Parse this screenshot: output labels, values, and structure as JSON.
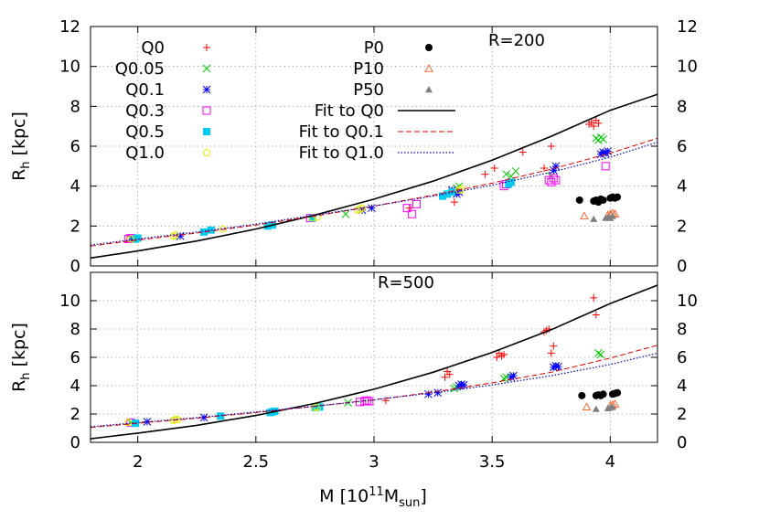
{
  "chart_data": {
    "type": "scatter",
    "xlabel": "M [10^11 M_sun]",
    "xlim": [
      1.8,
      4.2
    ],
    "x_ticks": [
      "2",
      "2.5",
      "3",
      "3.5",
      "4"
    ],
    "colors": {
      "Q0": "#ff0000",
      "Q0.05": "#00cc00",
      "Q0.1": "#0000ff",
      "Q0.3": "#ff00ff",
      "Q0.5": "#00ccee",
      "Q1.0": "#e8e800",
      "P0": "#000000",
      "P10": "#ff6633",
      "P50": "#808080",
      "Fit to Q0": "#000000",
      "Fit to Q0.1": "#dd0000",
      "Fit to Q1.0": "#0000cc"
    },
    "legend": {
      "left": [
        {
          "label": "Q0",
          "marker": "plus"
        },
        {
          "label": "Q0.05",
          "marker": "x"
        },
        {
          "label": "Q0.1",
          "marker": "star"
        },
        {
          "label": "Q0.3",
          "marker": "open-square"
        },
        {
          "label": "Q0.5",
          "marker": "filled-square"
        },
        {
          "label": "Q1.0",
          "marker": "open-pentagon"
        }
      ],
      "right": [
        {
          "label": "P0",
          "marker": "filled-circle"
        },
        {
          "label": "P10",
          "marker": "open-triangle"
        },
        {
          "label": "P50",
          "marker": "filled-triangle"
        },
        {
          "label": "Fit to Q0",
          "marker": "solid-line"
        },
        {
          "label": "Fit to Q0.1",
          "marker": "dashed-line"
        },
        {
          "label": "Fit to Q1.0",
          "marker": "dotted-line"
        }
      ]
    },
    "panels": [
      {
        "label": "R=200",
        "ylabel": "R_h [kpc]",
        "ylim": [
          0,
          12
        ],
        "y_ticks": [
          "0",
          "2",
          "4",
          "6",
          "8",
          "10",
          "12"
        ],
        "series": [
          {
            "name": "Q0",
            "x": [
              3.15,
              3.34,
              3.47,
              3.51,
              3.63,
              3.72,
              3.75,
              3.91,
              3.92,
              3.93,
              3.94,
              3.95
            ],
            "y": [
              2.9,
              3.2,
              4.6,
              4.9,
              5.7,
              4.9,
              6.0,
              7.1,
              7.2,
              7.0,
              7.3,
              7.15
            ]
          },
          {
            "name": "Q0.05",
            "x": [
              1.97,
              2.88,
              3.35,
              3.36,
              3.56,
              3.58,
              3.6,
              3.75,
              3.94,
              3.95,
              3.96,
              3.97
            ],
            "y": [
              1.35,
              2.6,
              3.9,
              4.0,
              4.6,
              4.5,
              4.75,
              4.5,
              6.4,
              6.3,
              6.45,
              6.35
            ]
          },
          {
            "name": "Q0.1",
            "x": [
              1.98,
              2.18,
              2.95,
              2.99,
              3.33,
              3.35,
              3.36,
              3.76,
              3.77,
              3.96,
              3.97,
              3.98,
              3.99
            ],
            "y": [
              1.35,
              1.5,
              2.8,
              2.9,
              3.8,
              3.6,
              3.7,
              4.8,
              5.0,
              5.6,
              5.7,
              5.65,
              5.75
            ]
          },
          {
            "name": "Q0.3",
            "x": [
              1.96,
              1.97,
              2.73,
              3.14,
              3.16,
              3.18,
              3.55,
              3.56,
              3.74,
              3.75,
              3.76,
              3.77,
              3.98
            ],
            "y": [
              1.35,
              1.4,
              2.4,
              2.9,
              2.6,
              3.1,
              4.0,
              4.1,
              4.3,
              4.2,
              4.4,
              4.3,
              5.0
            ]
          },
          {
            "name": "Q0.5",
            "x": [
              1.99,
              2.0,
              2.28,
              2.31,
              2.55,
              2.57,
              2.74,
              3.29,
              3.31,
              3.33,
              3.57,
              3.58
            ],
            "y": [
              1.35,
              1.4,
              1.7,
              1.8,
              2.0,
              2.05,
              2.4,
              3.5,
              3.6,
              3.7,
              4.1,
              4.2
            ]
          },
          {
            "name": "Q1.0",
            "x": [
              1.97,
              2.15,
              2.16,
              2.36,
              2.74,
              2.76,
              2.93,
              2.94,
              2.95,
              3.36,
              3.37
            ],
            "y": [
              1.35,
              1.5,
              1.55,
              1.85,
              2.4,
              2.45,
              2.8,
              2.85,
              2.9,
              3.8,
              3.85
            ]
          },
          {
            "name": "P0",
            "x": [
              3.87,
              3.93,
              3.94,
              3.95,
              3.96,
              3.97,
              4.0,
              4.01,
              4.02,
              4.03
            ],
            "y": [
              3.3,
              3.25,
              3.3,
              3.2,
              3.35,
              3.3,
              3.4,
              3.45,
              3.4,
              3.45
            ]
          },
          {
            "name": "P10",
            "x": [
              3.89,
              3.99,
              4.0,
              4.01,
              4.02
            ],
            "y": [
              2.5,
              2.55,
              2.6,
              2.65,
              2.6
            ]
          },
          {
            "name": "P50",
            "x": [
              3.93,
              3.98,
              3.99,
              4.0,
              4.01
            ],
            "y": [
              2.35,
              2.4,
              2.45,
              2.4,
              2.5
            ]
          }
        ],
        "fits": [
          {
            "name": "Fit to Q0",
            "x": [
              1.8,
              2.0,
              2.25,
              2.5,
              2.75,
              3.0,
              3.25,
              3.5,
              3.75,
              4.0,
              4.2
            ],
            "y": [
              0.4,
              0.75,
              1.25,
              1.85,
              2.55,
              3.35,
              4.25,
              5.3,
              6.5,
              7.8,
              8.6
            ]
          },
          {
            "name": "Fit to Q0.1",
            "x": [
              1.8,
              2.0,
              2.25,
              2.5,
              2.75,
              3.0,
              3.25,
              3.5,
              3.75,
              4.0,
              4.2
            ],
            "y": [
              1.0,
              1.3,
              1.65,
              2.05,
              2.5,
              3.0,
              3.55,
              4.15,
              4.85,
              5.65,
              6.4
            ]
          },
          {
            "name": "Fit to Q1.0",
            "x": [
              1.8,
              2.0,
              2.25,
              2.5,
              2.75,
              3.0,
              3.25,
              3.5,
              3.75,
              4.0,
              4.2
            ],
            "y": [
              1.05,
              1.35,
              1.7,
              2.1,
              2.55,
              3.0,
              3.5,
              4.05,
              4.7,
              5.45,
              6.2
            ]
          }
        ]
      },
      {
        "label": "R=500",
        "ylabel": "R_h [kpc]",
        "ylim": [
          0,
          12
        ],
        "y_ticks": [
          "0",
          "2",
          "4",
          "6",
          "8",
          "10",
          ""
        ],
        "series": [
          {
            "name": "Q0",
            "x": [
              3.05,
              3.3,
              3.31,
              3.32,
              3.52,
              3.53,
              3.54,
              3.55,
              3.72,
              3.73,
              3.74,
              3.75,
              3.76,
              3.93,
              3.94
            ],
            "y": [
              2.95,
              4.6,
              5.0,
              4.8,
              6.0,
              6.3,
              6.1,
              6.2,
              7.8,
              7.9,
              8.0,
              6.3,
              6.8,
              10.2,
              9.0
            ]
          },
          {
            "name": "Q0.05",
            "x": [
              1.97,
              2.89,
              3.34,
              3.35,
              3.55,
              3.56,
              3.95,
              3.96
            ],
            "y": [
              1.4,
              2.8,
              3.8,
              3.9,
              4.5,
              4.6,
              6.3,
              6.2
            ]
          },
          {
            "name": "Q0.1",
            "x": [
              1.99,
              2.04,
              2.28,
              3.23,
              3.27,
              3.36,
              3.37,
              3.38,
              3.58,
              3.59,
              3.76,
              3.77,
              3.78
            ],
            "y": [
              1.35,
              1.45,
              1.75,
              3.4,
              3.5,
              4.0,
              4.1,
              4.05,
              4.6,
              4.7,
              5.3,
              5.4,
              5.35
            ]
          },
          {
            "name": "Q0.3",
            "x": [
              1.97,
              2.94,
              2.96,
              2.97,
              2.98
            ],
            "y": [
              1.4,
              2.85,
              2.9,
              2.95,
              2.9
            ]
          },
          {
            "name": "Q0.5",
            "x": [
              1.99,
              2.35,
              2.56,
              2.57,
              2.58,
              2.75,
              2.76,
              2.77
            ],
            "y": [
              1.35,
              1.85,
              2.1,
              2.15,
              2.2,
              2.45,
              2.5,
              2.5
            ]
          },
          {
            "name": "Q1.0",
            "x": [
              1.96,
              2.15,
              2.16,
              2.17,
              2.75,
              2.76
            ],
            "y": [
              1.4,
              1.55,
              1.6,
              1.6,
              2.45,
              2.5
            ]
          },
          {
            "name": "P0",
            "x": [
              3.88,
              3.94,
              3.95,
              3.96,
              3.97,
              4.01,
              4.02,
              4.03
            ],
            "y": [
              3.3,
              3.3,
              3.35,
              3.3,
              3.4,
              3.4,
              3.45,
              3.5
            ]
          },
          {
            "name": "P10",
            "x": [
              3.9,
              4.0,
              4.01,
              4.02
            ],
            "y": [
              2.5,
              2.6,
              2.65,
              2.7
            ]
          },
          {
            "name": "P50",
            "x": [
              3.94,
              3.99,
              4.0,
              4.01
            ],
            "y": [
              2.35,
              2.4,
              2.45,
              2.5
            ]
          }
        ],
        "fits": [
          {
            "name": "Fit to Q0",
            "x": [
              1.8,
              2.0,
              2.25,
              2.5,
              2.75,
              3.0,
              3.25,
              3.5,
              3.75,
              4.0,
              4.2
            ],
            "y": [
              0.25,
              0.65,
              1.2,
              1.9,
              2.75,
              3.75,
              4.95,
              6.35,
              7.95,
              9.8,
              11.1
            ]
          },
          {
            "name": "Fit to Q0.1",
            "x": [
              1.8,
              2.0,
              2.25,
              2.5,
              2.75,
              3.0,
              3.25,
              3.5,
              3.75,
              4.0,
              4.2
            ],
            "y": [
              1.05,
              1.35,
              1.7,
              2.1,
              2.55,
              3.0,
              3.55,
              4.2,
              4.95,
              5.95,
              6.85
            ]
          },
          {
            "name": "Fit to Q1.0",
            "x": [
              1.8,
              2.0,
              2.25,
              2.5,
              2.75,
              3.0,
              3.25,
              3.5,
              3.75,
              4.0,
              4.2
            ],
            "y": [
              1.1,
              1.4,
              1.75,
              2.15,
              2.55,
              3.0,
              3.5,
              4.05,
              4.7,
              5.5,
              6.3
            ]
          }
        ]
      }
    ]
  }
}
